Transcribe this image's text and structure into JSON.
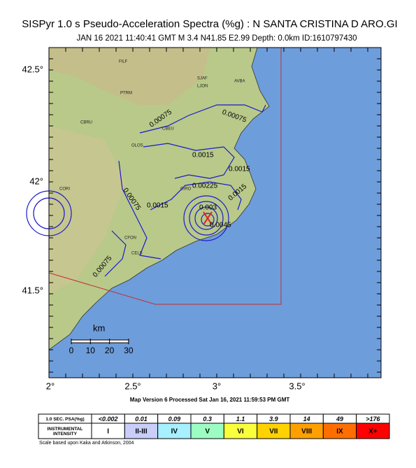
{
  "title": "SISPyr 1.0 s Pseudo-Acceleration Spectra (%g) : N SANTA CRISTINA D ARO.GI",
  "subtitle": "JAN 16 2021 11:40:41  GMT   M 3.4   N41.85 E2.99   Depth: 0.0km   ID:1610797430",
  "map": {
    "lat_labels": [
      "42.5°",
      "42°",
      "41.5°"
    ],
    "lon_labels": [
      "2°",
      "2.5°",
      "3°",
      "3.5°"
    ],
    "places": [
      "FILF",
      "PTRM",
      "CBRU",
      "CBEU",
      "OLOS",
      "CORI",
      "CFON",
      "CELS",
      "SJAF",
      "LJON",
      "AVBA",
      "GIRO"
    ],
    "contour_labels": [
      "0.00075",
      "0.00075",
      "0.0015",
      "0.0015",
      "0.00225",
      "0.0015",
      "0.00075",
      "0.0015",
      "0.003",
      "0.0045",
      "0.00075"
    ],
    "scale": {
      "unit": "km",
      "ticks": [
        "0",
        "10",
        "20",
        "30"
      ]
    }
  },
  "footer": "Map Version 6 Processed Sat Jan 16, 2021 11:59:53 PM GMT",
  "legend": {
    "psa_header": "1.0 SEC. PSA(%g)",
    "psa": [
      "<0.002",
      "0.01",
      "0.09",
      "0.3",
      "1.1",
      "3.9",
      "14",
      "49",
      ">176"
    ],
    "intensity_header": "INSTRUMENTAL INTENSITY",
    "intensity": [
      "I",
      "II-III",
      "IV",
      "V",
      "VI",
      "VII",
      "VIII",
      "IX",
      "X+"
    ],
    "colors": [
      "#ffffff",
      "#c8cdfa",
      "#a6f0ff",
      "#9cfdc2",
      "#faff3c",
      "#ffd200",
      "#ffa000",
      "#ff6e00",
      "#ff0000"
    ]
  },
  "note": "Scale based upon Kaka and Atkinson, 2004"
}
